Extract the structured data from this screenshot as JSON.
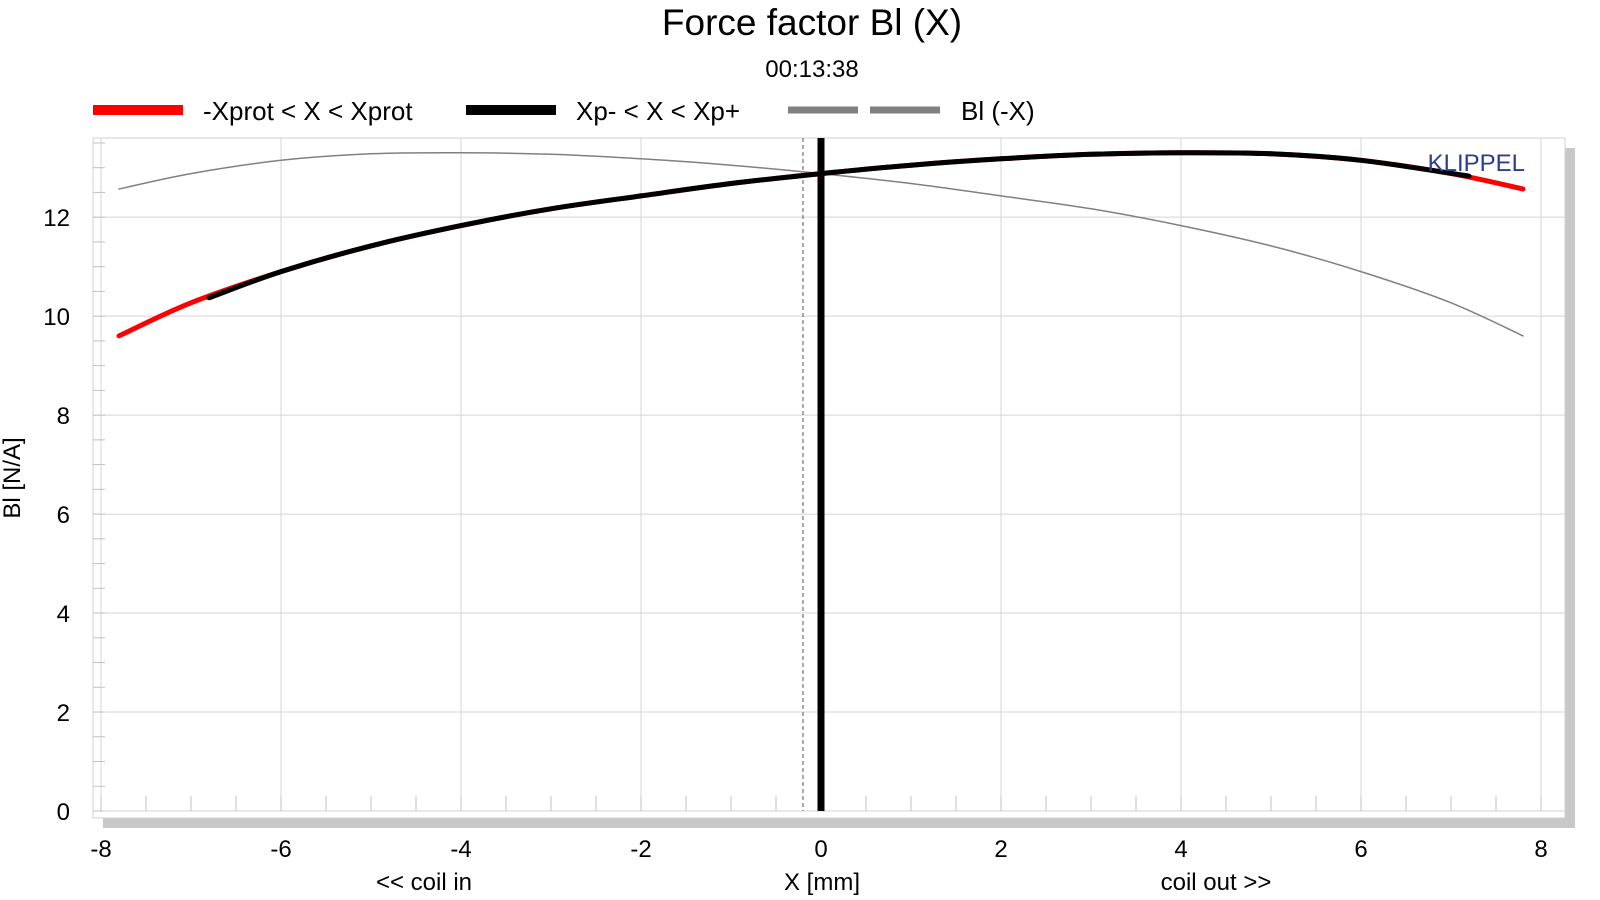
{
  "chart_data": {
    "type": "line",
    "title": "Force factor Bl (X)",
    "subtitle": "00:13:38",
    "xlabel": "X [mm]",
    "ylabel": "Bl [N/A]",
    "x_annotation_left": "<< coil in",
    "x_annotation_right": "coil out >>",
    "brand": "KLIPPEL",
    "xlim": [
      -8,
      8
    ],
    "ylim": [
      0,
      13.6
    ],
    "xticks": [
      -8,
      -6,
      -4,
      -2,
      0,
      2,
      4,
      6,
      8
    ],
    "yticks": [
      0,
      2,
      4,
      6,
      8,
      10,
      12
    ],
    "grid": true,
    "legend_position": "top",
    "legend": [
      {
        "label": "-Xprot < X < Xprot",
        "color": "#ff0000",
        "style": "solid"
      },
      {
        "label": "Xp- < X < Xp+",
        "color": "#000000",
        "style": "solid"
      },
      {
        "label": "Bl (-X)",
        "color": "#808080",
        "style": "dashed"
      }
    ],
    "series": [
      {
        "name": "-Xprot < X < Xprot",
        "color": "#ff0000",
        "x": [
          -7.8,
          -7.0,
          -6.0,
          -5.0,
          -4.0,
          -3.0,
          -2.0,
          -1.0,
          0.0,
          1.0,
          2.0,
          3.0,
          4.0,
          5.0,
          6.0,
          7.0,
          7.8
        ],
        "y": [
          9.6,
          10.27,
          10.9,
          11.42,
          11.83,
          12.17,
          12.43,
          12.68,
          12.88,
          13.05,
          13.18,
          13.27,
          13.3,
          13.28,
          13.15,
          12.88,
          12.57
        ]
      },
      {
        "name": "Xp- < X < Xp+",
        "color": "#000000",
        "x": [
          -6.8,
          -6.0,
          -5.0,
          -4.0,
          -3.0,
          -2.0,
          -1.0,
          0.0,
          1.0,
          2.0,
          3.0,
          4.0,
          5.0,
          6.0,
          7.2
        ],
        "y": [
          10.37,
          10.9,
          11.42,
          11.83,
          12.17,
          12.43,
          12.68,
          12.88,
          13.05,
          13.18,
          13.27,
          13.3,
          13.28,
          13.15,
          12.83
        ]
      },
      {
        "name": "Bl (-X)",
        "color": "#808080",
        "x": [
          -7.8,
          -7.0,
          -6.0,
          -5.0,
          -4.0,
          -3.0,
          -2.0,
          -1.0,
          0.0,
          1.0,
          2.0,
          3.0,
          4.0,
          5.0,
          6.0,
          7.0,
          7.8
        ],
        "y": [
          12.57,
          12.88,
          13.15,
          13.28,
          13.3,
          13.27,
          13.18,
          13.05,
          12.88,
          12.68,
          12.43,
          12.17,
          11.83,
          11.42,
          10.9,
          10.27,
          9.6
        ]
      }
    ],
    "vertical_markers": [
      {
        "x": 0.0,
        "color": "#000000",
        "style": "solid"
      },
      {
        "x": -0.2,
        "color": "#555555",
        "style": "dashed"
      }
    ]
  }
}
